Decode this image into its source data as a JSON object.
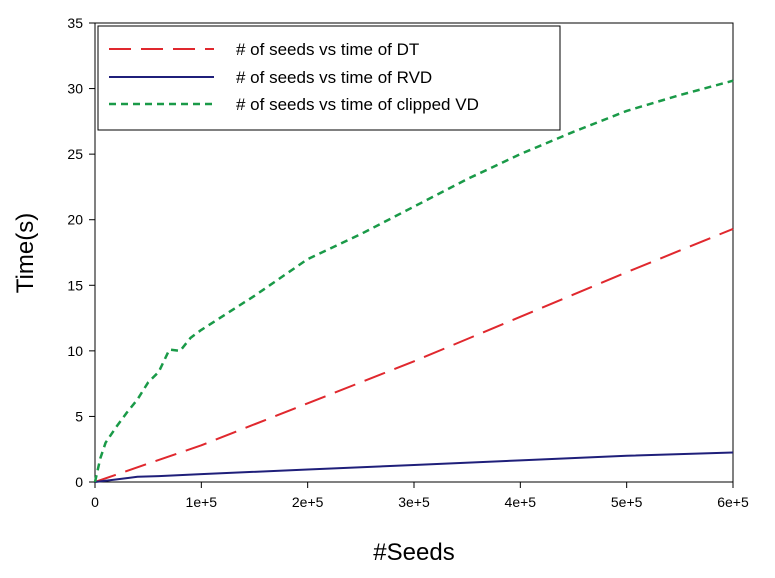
{
  "chart_data": {
    "type": "line",
    "title": "",
    "xlabel": "#Seeds",
    "ylabel": "Time(s)",
    "xlim": [
      0,
      600000
    ],
    "ylim": [
      0,
      35
    ],
    "x_ticks": [
      0,
      100000,
      200000,
      300000,
      400000,
      500000,
      600000
    ],
    "x_tick_labels": [
      "0",
      "1e+5",
      "2e+5",
      "3e+5",
      "4e+5",
      "5e+5",
      "6e+5"
    ],
    "y_ticks": [
      0,
      5,
      10,
      15,
      20,
      25,
      30,
      35
    ],
    "y_tick_labels": [
      "0",
      "5",
      "10",
      "15",
      "20",
      "25",
      "30",
      "35"
    ],
    "grid": false,
    "legend_position": "top-left",
    "series": [
      {
        "name": "# of seeds vs time of DT",
        "color": "#e0282e",
        "dash": "long-dash",
        "points": [
          [
            0,
            0
          ],
          [
            50000,
            1.4
          ],
          [
            100000,
            2.8
          ],
          [
            200000,
            6.0
          ],
          [
            300000,
            9.2
          ],
          [
            400000,
            12.6
          ],
          [
            500000,
            16.0
          ],
          [
            600000,
            19.3
          ]
        ]
      },
      {
        "name": "# of seeds vs time of RVD",
        "color": "#1f1f7a",
        "dash": "solid",
        "points": [
          [
            0,
            0
          ],
          [
            10000,
            0.1
          ],
          [
            30000,
            0.3
          ],
          [
            40000,
            0.4
          ],
          [
            60000,
            0.45
          ],
          [
            100000,
            0.6
          ],
          [
            200000,
            0.95
          ],
          [
            300000,
            1.3
          ],
          [
            400000,
            1.65
          ],
          [
            500000,
            2.0
          ],
          [
            600000,
            2.25
          ]
        ]
      },
      {
        "name": "# of seeds vs time of clipped VD",
        "color": "#1a9a48",
        "dash": "short-dash",
        "points": [
          [
            0,
            0
          ],
          [
            5000,
            1.8
          ],
          [
            10000,
            3.0
          ],
          [
            20000,
            4.2
          ],
          [
            30000,
            5.3
          ],
          [
            40000,
            6.3
          ],
          [
            50000,
            7.6
          ],
          [
            60000,
            8.4
          ],
          [
            70000,
            10.1
          ],
          [
            80000,
            10.0
          ],
          [
            90000,
            11.0
          ],
          [
            100000,
            11.6
          ],
          [
            150000,
            14.2
          ],
          [
            200000,
            17.0
          ],
          [
            250000,
            18.9
          ],
          [
            300000,
            21.0
          ],
          [
            350000,
            23.1
          ],
          [
            400000,
            25.0
          ],
          [
            450000,
            26.7
          ],
          [
            500000,
            28.3
          ],
          [
            550000,
            29.5
          ],
          [
            600000,
            30.6
          ]
        ]
      }
    ]
  }
}
